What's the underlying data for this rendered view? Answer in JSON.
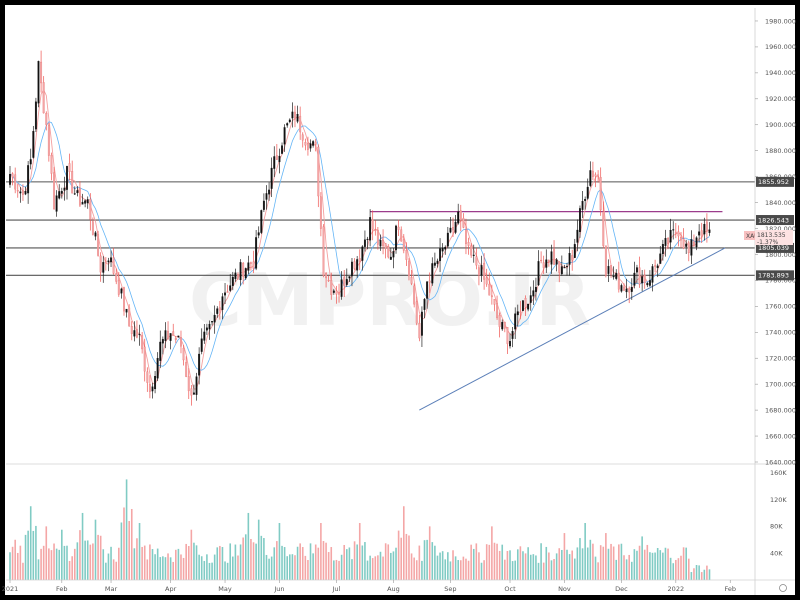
{
  "watermark": "CMPRO.IR",
  "symbol": "XAUUSD",
  "last_price": "1813.535",
  "change_pct": "-1.37%",
  "colors": {
    "up": "#26a69a",
    "down": "#ef5350",
    "candle_body_up": "#000000",
    "candle_wick": "#000000",
    "ma_fast": "#f4a0a0",
    "ma_slow": "#64b5f6",
    "horizontal_levels": "#555555",
    "resistance": "#9c3c8c",
    "trendline": "#5b7fb8",
    "price_tag": "#f8c0c0"
  },
  "chart_data": [
    {
      "type": "candlestick",
      "ylim": [
        1640,
        1990
      ],
      "y_ticks": [
        "1980.000",
        "1960.000",
        "1940.000",
        "1920.000",
        "1900.000",
        "1880.000",
        "1860.000",
        "1840.000",
        "1820.000",
        "1800.000",
        "1780.000",
        "1760.000",
        "1740.000",
        "1720.000",
        "1700.000",
        "1680.000",
        "1660.000",
        "1640.000"
      ],
      "y_tick_values": [
        1980,
        1960,
        1940,
        1920,
        1900,
        1880,
        1860,
        1840,
        1820,
        1800,
        1780,
        1760,
        1740,
        1720,
        1700,
        1680,
        1660,
        1640
      ],
      "x_labels": [
        "2021",
        "Feb",
        "Mar",
        "Apr",
        "May",
        "Jun",
        "Jul",
        "Aug",
        "Sep",
        "Oct",
        "Nov",
        "Dec",
        "2022",
        "Feb"
      ],
      "x_label_bar_index": [
        0,
        20,
        39,
        62,
        83,
        104,
        126,
        148,
        170,
        193,
        214,
        236,
        257,
        278
      ],
      "horizontal_levels": [
        {
          "value": 1855.952,
          "label": "1855.952"
        },
        {
          "value": 1826.543,
          "label": "1826.543"
        },
        {
          "value": 1805.039,
          "label": "1805.039"
        },
        {
          "value": 1783.893,
          "label": "1783.893"
        }
      ],
      "resistance_line": {
        "value": 1833,
        "from_bar": 139,
        "to_bar": 275
      },
      "trendline": {
        "from": [
          158,
          1680
        ],
        "to": [
          276,
          1805
        ]
      },
      "series": [
        {
          "name": "close_anchor",
          "values": [
            {
              "bar": 0,
              "close": 1862
            },
            {
              "bar": 5,
              "close": 1846
            },
            {
              "bar": 8,
              "close": 1872
            },
            {
              "bar": 11,
              "close": 1945
            },
            {
              "bar": 14,
              "close": 1900
            },
            {
              "bar": 17,
              "close": 1840
            },
            {
              "bar": 22,
              "close": 1862
            },
            {
              "bar": 26,
              "close": 1843
            },
            {
              "bar": 30,
              "close": 1840
            },
            {
              "bar": 35,
              "close": 1790
            },
            {
              "bar": 38,
              "close": 1800
            },
            {
              "bar": 42,
              "close": 1775
            },
            {
              "bar": 46,
              "close": 1745
            },
            {
              "bar": 50,
              "close": 1735
            },
            {
              "bar": 54,
              "close": 1695
            },
            {
              "bar": 58,
              "close": 1730
            },
            {
              "bar": 62,
              "close": 1740
            },
            {
              "bar": 66,
              "close": 1730
            },
            {
              "bar": 70,
              "close": 1688
            },
            {
              "bar": 74,
              "close": 1730
            },
            {
              "bar": 78,
              "close": 1745
            },
            {
              "bar": 82,
              "close": 1770
            },
            {
              "bar": 86,
              "close": 1780
            },
            {
              "bar": 90,
              "close": 1790
            },
            {
              "bar": 94,
              "close": 1795
            },
            {
              "bar": 98,
              "close": 1840
            },
            {
              "bar": 102,
              "close": 1870
            },
            {
              "bar": 106,
              "close": 1895
            },
            {
              "bar": 110,
              "close": 1908
            },
            {
              "bar": 114,
              "close": 1890
            },
            {
              "bar": 118,
              "close": 1880
            },
            {
              "bar": 121,
              "close": 1790
            },
            {
              "bar": 124,
              "close": 1775
            },
            {
              "bar": 127,
              "close": 1772
            },
            {
              "bar": 131,
              "close": 1790
            },
            {
              "bar": 135,
              "close": 1800
            },
            {
              "bar": 139,
              "close": 1825
            },
            {
              "bar": 143,
              "close": 1805
            },
            {
              "bar": 147,
              "close": 1800
            },
            {
              "bar": 150,
              "close": 1825
            },
            {
              "bar": 154,
              "close": 1790
            },
            {
              "bar": 158,
              "close": 1735
            },
            {
              "bar": 161,
              "close": 1780
            },
            {
              "bar": 165,
              "close": 1795
            },
            {
              "bar": 169,
              "close": 1810
            },
            {
              "bar": 173,
              "close": 1830
            },
            {
              "bar": 177,
              "close": 1800
            },
            {
              "bar": 181,
              "close": 1790
            },
            {
              "bar": 185,
              "close": 1770
            },
            {
              "bar": 189,
              "close": 1745
            },
            {
              "bar": 193,
              "close": 1735
            },
            {
              "bar": 197,
              "close": 1760
            },
            {
              "bar": 201,
              "close": 1768
            },
            {
              "bar": 205,
              "close": 1795
            },
            {
              "bar": 209,
              "close": 1800
            },
            {
              "bar": 213,
              "close": 1785
            },
            {
              "bar": 217,
              "close": 1800
            },
            {
              "bar": 221,
              "close": 1840
            },
            {
              "bar": 224,
              "close": 1865
            },
            {
              "bar": 227,
              "close": 1860
            },
            {
              "bar": 230,
              "close": 1790
            },
            {
              "bar": 234,
              "close": 1780
            },
            {
              "bar": 238,
              "close": 1775
            },
            {
              "bar": 242,
              "close": 1785
            },
            {
              "bar": 246,
              "close": 1780
            },
            {
              "bar": 250,
              "close": 1795
            },
            {
              "bar": 254,
              "close": 1810
            },
            {
              "bar": 258,
              "close": 1820
            },
            {
              "bar": 262,
              "close": 1800
            },
            {
              "bar": 266,
              "close": 1820
            },
            {
              "bar": 270,
              "close": 1815
            }
          ]
        }
      ]
    },
    {
      "type": "bar",
      "title": "volume",
      "ylim": [
        0,
        170
      ],
      "y_ticks": [
        "160K",
        "120K",
        "80K",
        "40K"
      ],
      "y_tick_values": [
        160,
        120,
        80,
        40
      ],
      "bars": 271,
      "peaks": [
        {
          "bar": 2,
          "value": 60
        },
        {
          "bar": 8,
          "value": 110
        },
        {
          "bar": 14,
          "value": 80
        },
        {
          "bar": 20,
          "value": 75
        },
        {
          "bar": 28,
          "value": 100
        },
        {
          "bar": 33,
          "value": 90
        },
        {
          "bar": 45,
          "value": 150
        },
        {
          "bar": 50,
          "value": 85
        },
        {
          "bar": 70,
          "value": 75
        },
        {
          "bar": 92,
          "value": 100
        },
        {
          "bar": 96,
          "value": 90
        },
        {
          "bar": 104,
          "value": 85
        },
        {
          "bar": 120,
          "value": 85
        },
        {
          "bar": 135,
          "value": 85
        },
        {
          "bar": 152,
          "value": 110
        },
        {
          "bar": 162,
          "value": 80
        },
        {
          "bar": 186,
          "value": 80
        },
        {
          "bar": 214,
          "value": 70
        },
        {
          "bar": 222,
          "value": 85
        },
        {
          "bar": 230,
          "value": 70
        },
        {
          "bar": 244,
          "value": 65
        },
        {
          "bar": 260,
          "value": 45
        }
      ]
    }
  ]
}
